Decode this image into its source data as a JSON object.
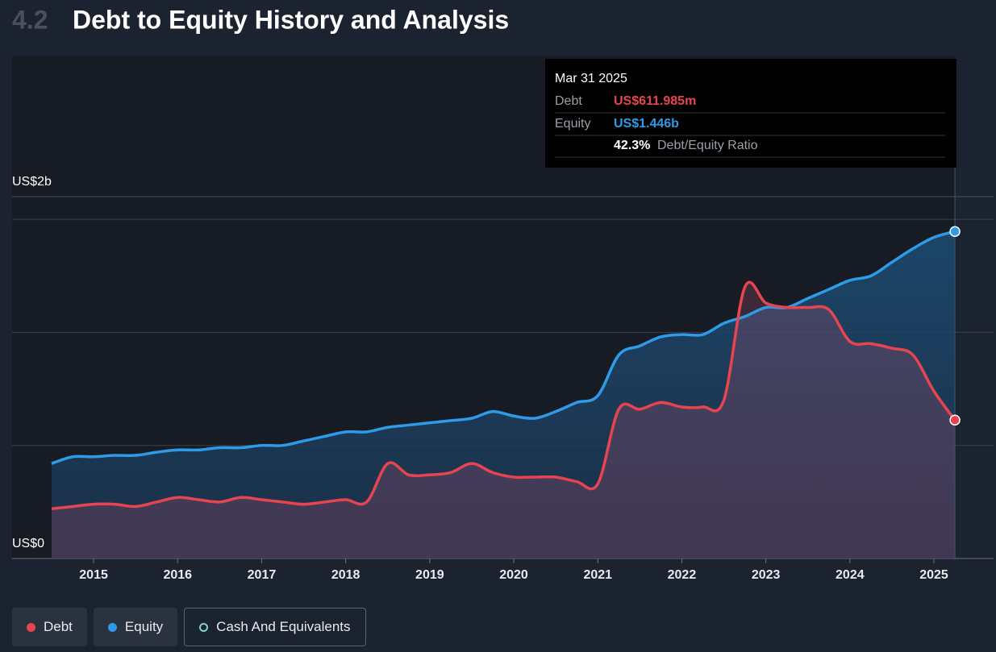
{
  "header": {
    "section": "4.2",
    "title": "Debt to Equity History and Analysis"
  },
  "chart_data": {
    "type": "area_line",
    "x": [
      2014.5,
      2014.75,
      2015,
      2015.25,
      2015.5,
      2015.75,
      2016,
      2016.25,
      2016.5,
      2016.75,
      2017,
      2017.25,
      2017.5,
      2017.75,
      2018,
      2018.25,
      2018.5,
      2018.75,
      2019,
      2019.25,
      2019.5,
      2019.75,
      2020,
      2020.25,
      2020.5,
      2020.75,
      2021,
      2021.25,
      2021.5,
      2021.75,
      2022,
      2022.25,
      2022.5,
      2022.75,
      2023,
      2023.25,
      2023.5,
      2023.75,
      2024,
      2024.25,
      2024.5,
      2024.75,
      2025,
      2025.25
    ],
    "series": [
      {
        "name": "Debt",
        "color": "#e8444f",
        "values": [
          0.22,
          0.23,
          0.24,
          0.24,
          0.23,
          0.25,
          0.27,
          0.26,
          0.25,
          0.27,
          0.26,
          0.25,
          0.24,
          0.25,
          0.26,
          0.25,
          0.42,
          0.37,
          0.37,
          0.38,
          0.42,
          0.38,
          0.36,
          0.36,
          0.36,
          0.34,
          0.33,
          0.66,
          0.66,
          0.69,
          0.67,
          0.67,
          0.7,
          1.2,
          1.13,
          1.11,
          1.11,
          1.1,
          0.96,
          0.95,
          0.93,
          0.9,
          0.74,
          0.612
        ]
      },
      {
        "name": "Equity",
        "color": "#2d9be8",
        "values": [
          0.42,
          0.45,
          0.45,
          0.456,
          0.456,
          0.47,
          0.48,
          0.48,
          0.49,
          0.49,
          0.5,
          0.5,
          0.52,
          0.54,
          0.56,
          0.56,
          0.58,
          0.59,
          0.6,
          0.61,
          0.62,
          0.65,
          0.63,
          0.62,
          0.65,
          0.69,
          0.72,
          0.9,
          0.94,
          0.98,
          0.99,
          0.99,
          1.04,
          1.07,
          1.11,
          1.11,
          1.15,
          1.19,
          1.23,
          1.25,
          1.31,
          1.37,
          1.42,
          1.446
        ]
      },
      {
        "name": "Cash And Equivalents",
        "color": "#7fd3d0",
        "hidden": true
      }
    ],
    "xlim": [
      2014.03,
      2025.71
    ],
    "xticks": [
      2015,
      2016,
      2017,
      2018,
      2019,
      2020,
      2021,
      2022,
      2023,
      2024,
      2025
    ],
    "ylim": [
      0,
      1.6
    ],
    "yticks": [
      {
        "value": 0,
        "label": "US$0"
      },
      {
        "value": 1.6,
        "label": "US$2b"
      }
    ],
    "ygrid": [
      0.5,
      1,
      1.5
    ],
    "tooltip": {
      "date": "Mar 31 2025",
      "rows": [
        {
          "label": "Debt",
          "value": "US$611.985m"
        },
        {
          "label": "Equity",
          "value": "US$1.446b"
        },
        {
          "label": "Debt/Equity Ratio",
          "value": "42.3%"
        }
      ]
    }
  }
}
